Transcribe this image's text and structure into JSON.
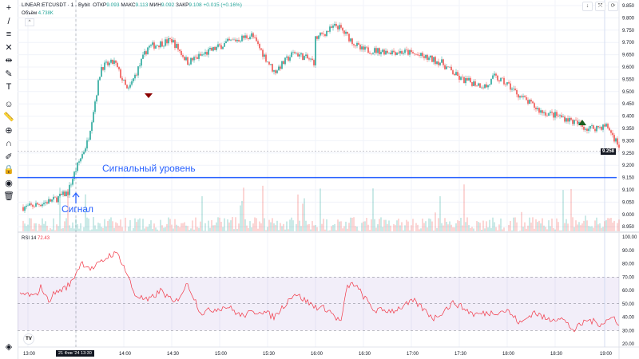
{
  "header": {
    "symbol": "LINEAR:ETCUSDT · 1 · Bybit",
    "open_label": "ОТКР",
    "open": "9.093",
    "high_label": "МАКС",
    "high": "9.113",
    "low_label": "МИН",
    "low": "9.092",
    "close_label": "ЗАКР",
    "close": "9.108",
    "change": "+0.015 (+0.16%)",
    "volume_label": "Объём",
    "volume": "4.738K"
  },
  "toolbar": {
    "icons": [
      "crosshair-icon",
      "trend-line-icon",
      "fib-icon",
      "pattern-icon",
      "projection-icon",
      "brush-icon",
      "text-icon",
      "emoji-icon",
      "ruler-icon",
      "zoom-in-icon",
      "magnet-icon",
      "lock-drawings-icon",
      "lock-icon",
      "eye-icon",
      "trash-icon"
    ],
    "bottom_icon": "object-tree-icon"
  },
  "top_buttons": [
    "↓",
    "⤧",
    "⟳"
  ],
  "price_axis": [
    "9.850",
    "9.800",
    "9.750",
    "9.700",
    "9.650",
    "9.600",
    "9.550",
    "9.500",
    "9.450",
    "9.400",
    "9.350",
    "9.300",
    "9.250",
    "9.200",
    "9.150",
    "9.100",
    "9.050",
    "9.000",
    "8.950"
  ],
  "current_price": "9.258",
  "rsi": {
    "label": "RSI 14",
    "value": "72.43",
    "axis": [
      "100.00",
      "90.00",
      "80.00",
      "70.00",
      "60.00",
      "50.00",
      "40.00",
      "30.00",
      "20.00"
    ]
  },
  "time_axis": [
    "13:00",
    "14:00",
    "14:30",
    "15:00",
    "15:30",
    "16:00",
    "16:30",
    "17:00",
    "17:30",
    "18:00",
    "18:30",
    "19:00"
  ],
  "crosshair_time": "21 Фев '24  13:30",
  "annotations": {
    "level_label": "Сигнальный уровень",
    "signal_label": "Сигнал",
    "level_price": 9.15
  },
  "colors": {
    "up": "#26a69a",
    "down": "#ef5350",
    "level": "#2962ff",
    "rsi": "#f23645",
    "rsi_band": "#7e57c2"
  },
  "chart_data": {
    "type": "candlestick",
    "x_unit": "minutes after 13:00",
    "price_keypoints": [
      [
        0,
        9.03
      ],
      [
        20,
        9.06
      ],
      [
        30,
        9.09
      ],
      [
        35,
        9.17
      ],
      [
        45,
        9.3
      ],
      [
        55,
        9.6
      ],
      [
        65,
        9.62
      ],
      [
        75,
        9.5
      ],
      [
        90,
        9.68
      ],
      [
        108,
        9.71
      ],
      [
        120,
        9.62
      ],
      [
        150,
        9.7
      ],
      [
        168,
        9.73
      ],
      [
        185,
        9.58
      ],
      [
        200,
        9.66
      ],
      [
        215,
        9.62
      ],
      [
        200,
        9.66
      ],
      [
        232,
        9.77
      ],
      [
        250,
        9.67
      ],
      [
        285,
        9.66
      ],
      [
        310,
        9.62
      ],
      [
        325,
        9.55
      ],
      [
        345,
        9.52
      ],
      [
        350,
        9.56
      ],
      [
        360,
        9.53
      ],
      [
        370,
        9.48
      ],
      [
        385,
        9.42
      ],
      [
        405,
        9.39
      ],
      [
        420,
        9.35
      ],
      [
        435,
        9.36
      ],
      [
        445,
        9.27
      ]
    ],
    "rsi_keypoints": [
      [
        0,
        57
      ],
      [
        5,
        55
      ],
      [
        10,
        63
      ],
      [
        15,
        52
      ],
      [
        20,
        58
      ],
      [
        28,
        62
      ],
      [
        32,
        65
      ],
      [
        40,
        81
      ],
      [
        48,
        76
      ],
      [
        55,
        81
      ],
      [
        62,
        87
      ],
      [
        68,
        87
      ],
      [
        75,
        71
      ],
      [
        80,
        57
      ],
      [
        90,
        52
      ],
      [
        100,
        60
      ],
      [
        110,
        50
      ],
      [
        120,
        65
      ],
      [
        130,
        43
      ],
      [
        140,
        46
      ],
      [
        150,
        48
      ],
      [
        160,
        41
      ],
      [
        175,
        45
      ],
      [
        185,
        40
      ],
      [
        200,
        58
      ],
      [
        215,
        48
      ],
      [
        225,
        46
      ],
      [
        235,
        36
      ],
      [
        240,
        63
      ],
      [
        245,
        65
      ],
      [
        260,
        45
      ],
      [
        275,
        45
      ],
      [
        290,
        52
      ],
      [
        305,
        39
      ],
      [
        320,
        51
      ],
      [
        335,
        42
      ],
      [
        345,
        43
      ],
      [
        360,
        45
      ],
      [
        370,
        35
      ],
      [
        380,
        44
      ],
      [
        390,
        38
      ],
      [
        400,
        40
      ],
      [
        410,
        30
      ],
      [
        420,
        38
      ],
      [
        430,
        35
      ],
      [
        440,
        40
      ],
      [
        445,
        34
      ]
    ],
    "rsi_band": [
      30,
      70
    ]
  }
}
